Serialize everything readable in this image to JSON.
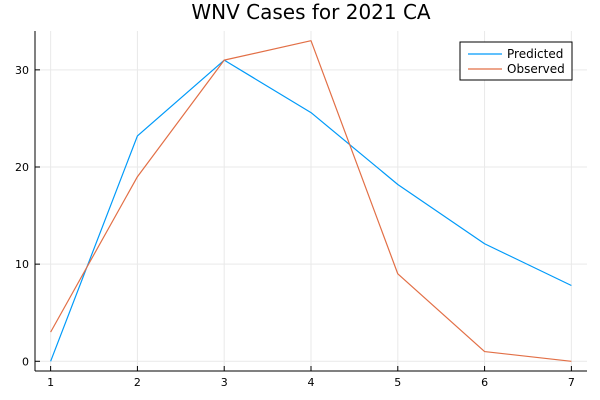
{
  "chart_data": {
    "type": "line",
    "title": "WNV Cases for 2021 CA",
    "xlabel": "",
    "ylabel": "",
    "x": [
      1,
      2,
      3,
      4,
      5,
      6,
      7
    ],
    "xlim": [
      0.82,
      7.18
    ],
    "ylim": [
      -1,
      34
    ],
    "xticks": [
      1,
      2,
      3,
      4,
      5,
      6,
      7
    ],
    "yticks": [
      0,
      10,
      20,
      30
    ],
    "grid": true,
    "legend_position": "top-right",
    "series": [
      {
        "name": "Predicted",
        "color": "#009af9",
        "values": [
          0,
          23.2,
          31,
          25.6,
          18.2,
          12.1,
          7.8
        ]
      },
      {
        "name": "Observed",
        "color": "#e26f46",
        "values": [
          3,
          19,
          31,
          33,
          9,
          1,
          0
        ]
      }
    ]
  }
}
